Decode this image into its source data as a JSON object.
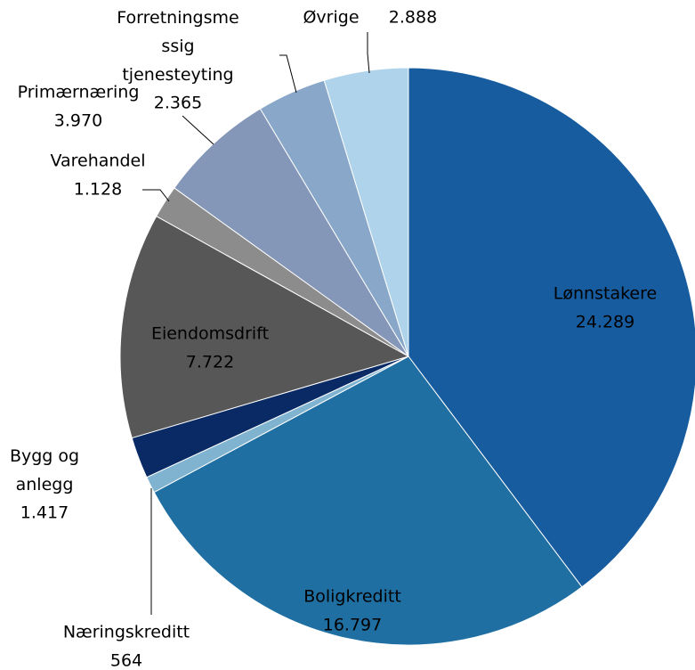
{
  "chart_data": {
    "type": "pie",
    "categories": [
      "Lønnstakere",
      "Boligkreditt",
      "Næringskreditt",
      "Bygg og anlegg",
      "Eiendomsdrift",
      "Varehandel",
      "Primærnæring",
      "Forretningsmessig tjenesteyting",
      "Øvrige"
    ],
    "values": [
      24289,
      16797,
      564,
      1417,
      7722,
      1128,
      3970,
      2365,
      2888
    ],
    "value_labels": [
      "24.289",
      "16.797",
      "564",
      "1.417",
      "7.722",
      "1.128",
      "3.970",
      "2.365",
      "2.888"
    ],
    "colors": [
      "#175c9f",
      "#1f6fa3",
      "#7fb3d0",
      "#0a2a66",
      "#575757",
      "#8c8c8c",
      "#8497b8",
      "#89a8c9",
      "#aed3ea"
    ]
  }
}
